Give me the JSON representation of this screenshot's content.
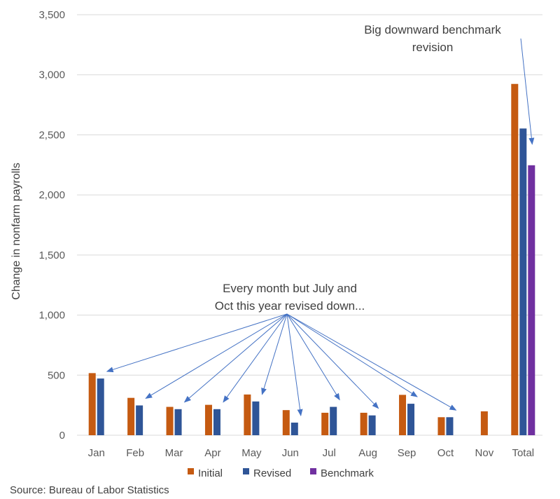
{
  "chart_data": {
    "type": "bar",
    "title": "",
    "xlabel": "",
    "ylabel": "Change in nonfarm payrolls",
    "ylim": [
      0,
      3500
    ],
    "yticks": [
      0,
      500,
      1000,
      1500,
      2000,
      2500,
      3000,
      3500
    ],
    "ytick_labels": [
      "0",
      "500",
      "1,000",
      "1,500",
      "2,000",
      "2,500",
      "3,000",
      "3,500"
    ],
    "categories": [
      "Jan",
      "Feb",
      "Mar",
      "Apr",
      "May",
      "Jun",
      "Jul",
      "Aug",
      "Sep",
      "Oct",
      "Nov",
      "Total"
    ],
    "series": [
      {
        "name": "Initial",
        "color": "#c55a11",
        "values": [
          517,
          311,
          236,
          253,
          339,
          209,
          187,
          187,
          336,
          150,
          199,
          2924
        ]
      },
      {
        "name": "Revised",
        "color": "#2f5597",
        "values": [
          472,
          248,
          217,
          217,
          281,
          105,
          236,
          165,
          262,
          150,
          null,
          2553
        ]
      },
      {
        "name": "Benchmark",
        "color": "#7030a0",
        "values": [
          null,
          null,
          null,
          null,
          null,
          null,
          null,
          null,
          null,
          null,
          null,
          2247
        ]
      }
    ],
    "grid": true,
    "legend": "bottom",
    "annotations": [
      {
        "id": "monthly",
        "lines": [
          "Every month but July and",
          "Oct this year revised down..."
        ],
        "targets": [
          "Jan",
          "Feb",
          "Mar",
          "Apr",
          "May",
          "Jun",
          "Jul",
          "Aug",
          "Sep",
          "Oct"
        ]
      },
      {
        "id": "benchmark",
        "lines": [
          "Big downward benchmark",
          "revision"
        ],
        "targets": [
          "Total"
        ]
      }
    ]
  },
  "source": "Source: Bureau of Labor Statistics"
}
